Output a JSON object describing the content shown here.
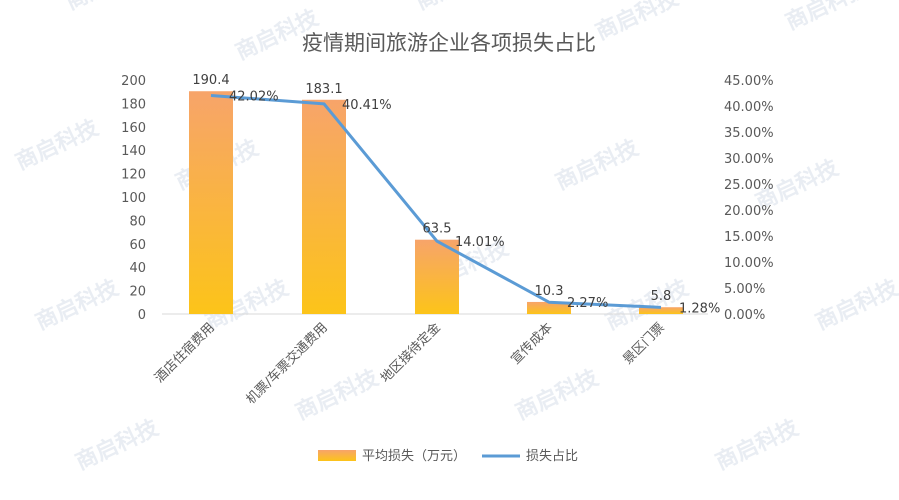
{
  "chart_data": {
    "type": "bar+line",
    "title": "疫情期间旅游企业各项损失占比",
    "categories": [
      "酒店住宿费用",
      "机票/车票交通费用",
      "地区接待定金",
      "宣传成本",
      "景区门票"
    ],
    "series": [
      {
        "name": "平均损失（万元）",
        "type": "bar",
        "axis": "left",
        "values": [
          190.4,
          183.1,
          63.5,
          10.3,
          5.8
        ],
        "labels": [
          "190.4",
          "183.1",
          "63.5",
          "10.3",
          "5.8"
        ]
      },
      {
        "name": "损失占比",
        "type": "line",
        "axis": "right",
        "values": [
          42.02,
          40.41,
          14.01,
          2.27,
          1.28
        ],
        "labels": [
          "42.02%",
          "40.41%",
          "14.01%",
          "2.27%",
          "1.28%"
        ]
      }
    ],
    "y_left": {
      "min": 0,
      "max": 200,
      "ticks": [
        0,
        20,
        40,
        60,
        80,
        100,
        120,
        140,
        160,
        180,
        200
      ],
      "tick_labels": [
        "0",
        "20",
        "40",
        "60",
        "80",
        "100",
        "120",
        "140",
        "160",
        "180",
        "200"
      ]
    },
    "y_right": {
      "min": 0,
      "max": 45,
      "ticks": [
        0,
        5,
        10,
        15,
        20,
        25,
        30,
        35,
        40,
        45
      ],
      "tick_labels": [
        "0.00%",
        "5.00%",
        "10.00%",
        "15.00%",
        "20.00%",
        "25.00%",
        "30.00%",
        "35.00%",
        "40.00%",
        "45.00%"
      ]
    },
    "grid": false,
    "legend_position": "bottom",
    "colors": {
      "bar_top": "#f7a46a",
      "bar_bottom": "#fcc419",
      "line": "#5b9bd5"
    },
    "watermark": "商启科技"
  }
}
